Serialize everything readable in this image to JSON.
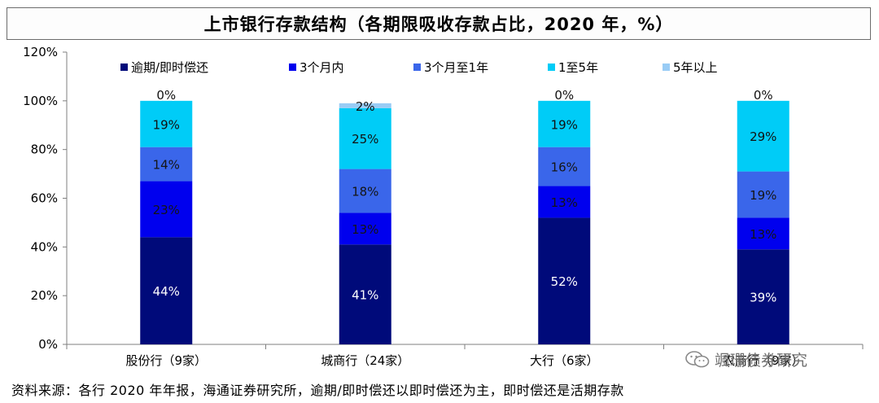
{
  "title": "上市银行存款结构（各期限吸收存款占比，2020 年，%）",
  "footnote": "资料来源：各行 2020 年年报，海通证券研究所，逾期/即时偿还以即时偿还为主，即时偿还是活期存款",
  "watermark": "颯珊债券研究",
  "colors": {
    "series": [
      "#000a7a",
      "#0000ee",
      "#3a66ea",
      "#00ccf7",
      "#99ccf5"
    ],
    "axis": "#7f7f7f",
    "frame": "#6c6c6c"
  },
  "chart_data": {
    "type": "bar",
    "stacked": true,
    "categories": [
      "股份行（9家）",
      "城商行（24家）",
      "大行（6家）",
      "农商行（9家）"
    ],
    "series": [
      {
        "name": "逾期/即时偿还",
        "values": [
          44,
          41,
          52,
          39
        ]
      },
      {
        "name": "3个月内",
        "values": [
          23,
          13,
          13,
          13
        ]
      },
      {
        "name": "3个月至1年",
        "values": [
          14,
          18,
          16,
          19
        ]
      },
      {
        "name": "1至5年",
        "values": [
          19,
          25,
          19,
          29
        ]
      },
      {
        "name": "5年以上",
        "values": [
          0,
          2,
          0,
          0
        ]
      }
    ],
    "yticks": [
      "0%",
      "20%",
      "40%",
      "60%",
      "80%",
      "100%",
      "120%"
    ],
    "ylim": [
      0,
      120
    ],
    "legend_position": "top",
    "grid": false
  }
}
